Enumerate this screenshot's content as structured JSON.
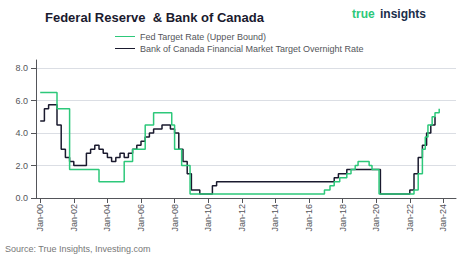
{
  "chart_data": {
    "type": "step",
    "title": "Federal Reserve  & Bank of Canada",
    "annotations": [
      {
        "text": "true",
        "color": "#2dc87a"
      },
      {
        "text": "insights",
        "color": "#1a2e4a"
      },
      {
        "text": "Source: True Insights, Investing.com",
        "color": "#777777"
      }
    ],
    "series": [
      {
        "name": "Fed Target Rate (Upper Bound)",
        "color": "#2dc87a",
        "x": [
          2000.0,
          2000.08,
          2000.5,
          2001.0,
          2001.75,
          2002.75,
          2003.5,
          2004.5,
          2005.0,
          2005.5,
          2006.25,
          2006.75,
          2007.0,
          2007.83,
          2008.0,
          2008.42,
          2008.92,
          2009.0,
          2015.92,
          2016.92,
          2017.25,
          2017.5,
          2017.83,
          2018.25,
          2018.5,
          2018.75,
          2018.92,
          2019.5,
          2019.58,
          2019.75,
          2020.0,
          2020.17,
          2021.92,
          2022.08,
          2022.25,
          2022.5,
          2022.75,
          2022.92,
          2023.08,
          2023.33,
          2023.5,
          2023.75
        ],
        "values": [
          6.5,
          6.5,
          6.5,
          5.5,
          1.75,
          1.75,
          1.0,
          1.0,
          2.25,
          3.0,
          4.5,
          5.25,
          5.25,
          4.5,
          3.0,
          2.0,
          0.25,
          0.25,
          0.25,
          0.5,
          0.75,
          1.0,
          1.25,
          1.5,
          1.75,
          2.0,
          2.25,
          2.25,
          2.0,
          1.75,
          1.75,
          0.25,
          0.25,
          0.25,
          0.5,
          1.5,
          3.0,
          3.75,
          4.5,
          5.0,
          5.25,
          5.5
        ]
      },
      {
        "name": "Bank of Canada Financial Market Target Overnight Rate",
        "color": "#1a1a2e",
        "x": [
          2000.0,
          2000.25,
          2000.5,
          2000.75,
          2001.0,
          2001.25,
          2001.5,
          2001.75,
          2002.0,
          2002.75,
          2003.0,
          2003.25,
          2003.5,
          2003.75,
          2004.0,
          2004.25,
          2004.5,
          2004.75,
          2005.0,
          2005.25,
          2005.5,
          2005.75,
          2006.0,
          2006.25,
          2006.5,
          2006.75,
          2007.0,
          2007.25,
          2007.5,
          2007.75,
          2008.0,
          2008.25,
          2008.5,
          2008.75,
          2009.0,
          2009.5,
          2010.0,
          2010.25,
          2010.5,
          2010.75,
          2011.0,
          2017.25,
          2017.5,
          2017.75,
          2018.0,
          2018.25,
          2018.5,
          2019.0,
          2019.5,
          2020.0,
          2020.25,
          2022.0,
          2022.25,
          2022.5,
          2022.75,
          2023.0,
          2023.25,
          2023.5
        ],
        "values": [
          4.75,
          5.5,
          5.75,
          5.75,
          4.5,
          3.0,
          2.5,
          2.25,
          2.0,
          2.75,
          3.0,
          3.25,
          3.0,
          2.75,
          2.5,
          2.25,
          2.5,
          2.75,
          2.5,
          2.75,
          3.0,
          3.25,
          3.5,
          3.75,
          4.0,
          4.25,
          4.25,
          4.5,
          4.5,
          4.25,
          4.0,
          3.0,
          2.25,
          1.5,
          0.5,
          0.25,
          0.25,
          0.75,
          1.0,
          1.0,
          1.0,
          1.0,
          1.25,
          1.5,
          1.5,
          1.75,
          1.75,
          1.75,
          1.75,
          1.75,
          0.25,
          0.5,
          1.5,
          2.5,
          3.25,
          4.0,
          4.5,
          5.0
        ]
      }
    ],
    "xlim": [
      1999.75,
      2024.75
    ],
    "xticks": [
      {
        "value": 2000,
        "label": "Jan-00"
      },
      {
        "value": 2002,
        "label": "Jan-02"
      },
      {
        "value": 2004,
        "label": "Jan-04"
      },
      {
        "value": 2006,
        "label": "Jan-06"
      },
      {
        "value": 2008,
        "label": "Jan-08"
      },
      {
        "value": 2010,
        "label": "Jan-10"
      },
      {
        "value": 2012,
        "label": "Jan-12"
      },
      {
        "value": 2014,
        "label": "Jan-14"
      },
      {
        "value": 2016,
        "label": "Jan-16"
      },
      {
        "value": 2018,
        "label": "Jan-18"
      },
      {
        "value": 2020,
        "label": "Jan-20"
      },
      {
        "value": 2022,
        "label": "Jan-22"
      },
      {
        "value": 2024,
        "label": "Jan-24"
      }
    ],
    "ylim": [
      0,
      8.5
    ],
    "yticks": [
      {
        "value": 0.0,
        "label": "0.0"
      },
      {
        "value": 2.0,
        "label": "2.0"
      },
      {
        "value": 4.0,
        "label": "4.0"
      },
      {
        "value": 6.0,
        "label": "6.0"
      },
      {
        "value": 8.0,
        "label": "8.0"
      }
    ],
    "grid": "y",
    "legend": "top"
  }
}
